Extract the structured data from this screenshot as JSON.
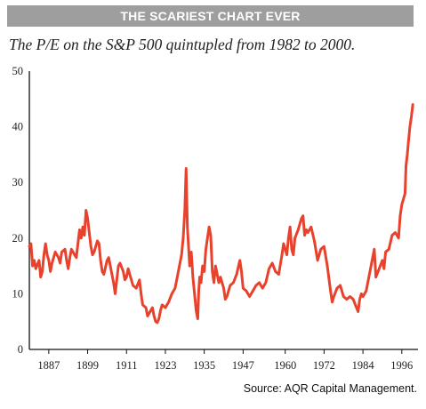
{
  "header": {
    "banner": "THE SCARIEST CHART EVER",
    "subtitle": "The P/E on the S&P 500 quintupled from 1982 to 2000."
  },
  "footer": {
    "source": "Source: AQR Capital Management."
  },
  "colors": {
    "line": "#e8412c",
    "banner_bg": "#9e9e9e",
    "axis": "#111111"
  },
  "chart_data": {
    "type": "line",
    "title": "",
    "xlabel": "",
    "ylabel": "",
    "xlim": [
      1881,
      2001
    ],
    "ylim": [
      0,
      50
    ],
    "grid": false,
    "legend": "none",
    "x_ticks": [
      1887,
      1899,
      1911,
      1923,
      1935,
      1947,
      1960,
      1972,
      1984,
      1996
    ],
    "y_ticks": [
      0,
      10,
      20,
      30,
      40,
      50
    ],
    "series": [
      {
        "values": [
          [
            1881,
            18.5
          ],
          [
            1881.5,
            19.0
          ],
          [
            1882,
            15.0
          ],
          [
            1882.5,
            16.0
          ],
          [
            1883,
            14.5
          ],
          [
            1884,
            16.0
          ],
          [
            1884.5,
            13.0
          ],
          [
            1885,
            14.0
          ],
          [
            1885.5,
            17.0
          ],
          [
            1886,
            19.0
          ],
          [
            1886.5,
            17.0
          ],
          [
            1887,
            16.0
          ],
          [
            1887.5,
            14.0
          ],
          [
            1888,
            15.5
          ],
          [
            1889,
            17.5
          ],
          [
            1890,
            16.5
          ],
          [
            1890.5,
            15.5
          ],
          [
            1891,
            17.5
          ],
          [
            1892,
            18.0
          ],
          [
            1892.5,
            16.0
          ],
          [
            1893,
            14.5
          ],
          [
            1893.5,
            16.5
          ],
          [
            1894,
            18.0
          ],
          [
            1895,
            17.0
          ],
          [
            1895.5,
            16.5
          ],
          [
            1896,
            19.0
          ],
          [
            1896.5,
            21.5
          ],
          [
            1897,
            20.0
          ],
          [
            1897.5,
            22.0
          ],
          [
            1898,
            20.5
          ],
          [
            1898.5,
            25.0
          ],
          [
            1899,
            23.5
          ],
          [
            1899.5,
            21.0
          ],
          [
            1900,
            18.5
          ],
          [
            1900.5,
            17.0
          ],
          [
            1901,
            17.5
          ],
          [
            1902,
            19.5
          ],
          [
            1902.5,
            19.0
          ],
          [
            1903,
            16.0
          ],
          [
            1903.5,
            14.0
          ],
          [
            1904,
            13.5
          ],
          [
            1905,
            16.0
          ],
          [
            1905.5,
            16.5
          ],
          [
            1906,
            15.0
          ],
          [
            1907,
            12.0
          ],
          [
            1907.5,
            10.0
          ],
          [
            1908,
            12.5
          ],
          [
            1908.5,
            15.0
          ],
          [
            1909,
            15.5
          ],
          [
            1910,
            14.0
          ],
          [
            1910.5,
            12.5
          ],
          [
            1911,
            13.0
          ],
          [
            1911.5,
            14.5
          ],
          [
            1912,
            13.5
          ],
          [
            1913,
            11.5
          ],
          [
            1914,
            11.0
          ],
          [
            1915,
            12.5
          ],
          [
            1915.5,
            10.0
          ],
          [
            1916,
            8.0
          ],
          [
            1917,
            7.5
          ],
          [
            1917.5,
            6.0
          ],
          [
            1918,
            6.5
          ],
          [
            1919,
            7.5
          ],
          [
            1919.5,
            6.0
          ],
          [
            1920,
            5.0
          ],
          [
            1920.5,
            4.8
          ],
          [
            1921,
            5.5
          ],
          [
            1921.5,
            7.0
          ],
          [
            1922,
            8.0
          ],
          [
            1923,
            7.5
          ],
          [
            1924,
            8.5
          ],
          [
            1925,
            10.0
          ],
          [
            1926,
            11.0
          ],
          [
            1927,
            14.0
          ],
          [
            1928,
            17.0
          ],
          [
            1928.5,
            20.0
          ],
          [
            1929,
            25.0
          ],
          [
            1929.4,
            32.5
          ],
          [
            1929.8,
            22.0
          ],
          [
            1930,
            20.0
          ],
          [
            1930.5,
            15.0
          ],
          [
            1931,
            17.5
          ],
          [
            1931.5,
            13.0
          ],
          [
            1932,
            10.0
          ],
          [
            1932.5,
            7.0
          ],
          [
            1933,
            5.5
          ],
          [
            1933.3,
            10.5
          ],
          [
            1933.6,
            13.0
          ],
          [
            1934,
            12.0
          ],
          [
            1934.5,
            15.0
          ],
          [
            1935,
            14.0
          ],
          [
            1935.5,
            18.0
          ],
          [
            1936,
            20.0
          ],
          [
            1936.5,
            22.0
          ],
          [
            1937,
            20.5
          ],
          [
            1937.5,
            14.0
          ],
          [
            1938,
            12.0
          ],
          [
            1938.5,
            15.0
          ],
          [
            1939,
            13.5
          ],
          [
            1939.5,
            12.0
          ],
          [
            1940,
            13.0
          ],
          [
            1941,
            11.0
          ],
          [
            1941.5,
            9.0
          ],
          [
            1942,
            9.5
          ],
          [
            1943,
            11.5
          ],
          [
            1944,
            12.0
          ],
          [
            1945,
            13.5
          ],
          [
            1946,
            16.0
          ],
          [
            1946.5,
            14.0
          ],
          [
            1947,
            11.0
          ],
          [
            1948,
            10.5
          ],
          [
            1949,
            9.5
          ],
          [
            1950,
            10.5
          ],
          [
            1951,
            11.5
          ],
          [
            1952,
            12.0
          ],
          [
            1953,
            11.0
          ],
          [
            1954,
            12.0
          ],
          [
            1955,
            14.5
          ],
          [
            1956,
            15.5
          ],
          [
            1957,
            14.0
          ],
          [
            1958,
            13.5
          ],
          [
            1959,
            17.0
          ],
          [
            1959.5,
            19.0
          ],
          [
            1960,
            18.0
          ],
          [
            1960.5,
            17.0
          ],
          [
            1961,
            20.0
          ],
          [
            1961.5,
            22.0
          ],
          [
            1962,
            18.0
          ],
          [
            1962.5,
            17.0
          ],
          [
            1963,
            20.0
          ],
          [
            1964,
            21.5
          ],
          [
            1965,
            23.5
          ],
          [
            1965.5,
            24.0
          ],
          [
            1966,
            20.5
          ],
          [
            1966.5,
            21.5
          ],
          [
            1967,
            21.0
          ],
          [
            1968,
            22.0
          ],
          [
            1969,
            19.5
          ],
          [
            1970,
            16.0
          ],
          [
            1970.5,
            17.0
          ],
          [
            1971,
            18.0
          ],
          [
            1972,
            18.5
          ],
          [
            1973,
            15.0
          ],
          [
            1974,
            10.5
          ],
          [
            1974.5,
            8.5
          ],
          [
            1975,
            9.5
          ],
          [
            1976,
            11.0
          ],
          [
            1977,
            11.5
          ],
          [
            1978,
            9.5
          ],
          [
            1979,
            9.0
          ],
          [
            1980,
            9.5
          ],
          [
            1981,
            9.0
          ],
          [
            1982,
            7.5
          ],
          [
            1982.5,
            6.8
          ],
          [
            1983,
            9.0
          ],
          [
            1983.5,
            10.0
          ],
          [
            1984,
            9.5
          ],
          [
            1985,
            10.5
          ],
          [
            1986,
            13.5
          ],
          [
            1987,
            16.5
          ],
          [
            1987.5,
            18.0
          ],
          [
            1988,
            13.0
          ],
          [
            1989,
            14.5
          ],
          [
            1990,
            16.0
          ],
          [
            1990.5,
            14.5
          ],
          [
            1991,
            17.5
          ],
          [
            1992,
            18.0
          ],
          [
            1993,
            20.5
          ],
          [
            1994,
            21.0
          ],
          [
            1995,
            20.0
          ],
          [
            1995.5,
            24.0
          ],
          [
            1996,
            26.0
          ],
          [
            1997,
            28.0
          ],
          [
            1997.3,
            33.0
          ],
          [
            1997.7,
            35.0
          ],
          [
            1998,
            37.0
          ],
          [
            1998.5,
            40.0
          ],
          [
            1999,
            42.0
          ],
          [
            1999.4,
            44.0
          ]
        ]
      }
    ]
  }
}
